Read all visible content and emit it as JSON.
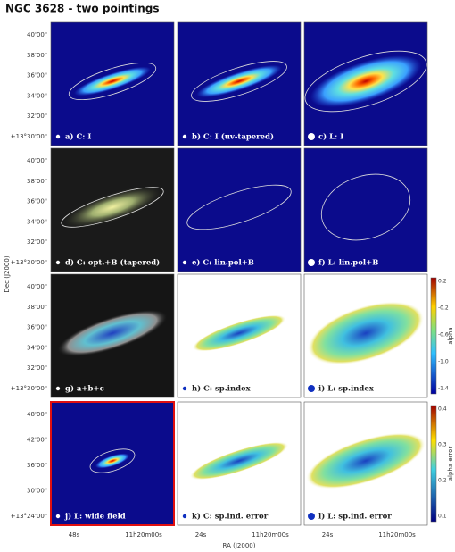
{
  "title": "NGC 3628 - two pointings",
  "panels": [
    {
      "label": "a) C: I"
    },
    {
      "label": "b) C: I (uv-tapered)"
    },
    {
      "label": "c) L: I"
    },
    {
      "label": "d) C: opt.+B (tapered)"
    },
    {
      "label": "e) C: lin.pol+B"
    },
    {
      "label": "f) L: lin.pol+B"
    },
    {
      "label": "g) a+b+c"
    },
    {
      "label": "h) C: sp.index"
    },
    {
      "label": "i) L: sp.index"
    },
    {
      "label": "j) L: wide field"
    },
    {
      "label": "k) C: sp.ind. error"
    },
    {
      "label": "l) L: sp.ind. error"
    }
  ],
  "y_axis": {
    "label": "Dec (J2000)",
    "ticks_rows_1_3": [
      "40'00\"",
      "38'00\"",
      "36'00\"",
      "34'00\"",
      "32'00\"",
      "+13°30'00\""
    ],
    "ticks_row_4": [
      "48'00\"",
      "42'00\"",
      "36'00\"",
      "30'00\"",
      "+13°24'00\""
    ]
  },
  "x_axis": {
    "label": "RA (J2000)",
    "ticks": [
      [
        "48s",
        "11h20m00s"
      ],
      [
        "24s",
        "11h20m00s"
      ],
      [
        "24s",
        "11h20m00s"
      ]
    ]
  },
  "colorbars": [
    {
      "label": "alpha",
      "ticks": [
        "0.2",
        "-0.2",
        "-0.6",
        "-1.0",
        "-1.4"
      ]
    },
    {
      "label": "alpha error",
      "ticks": [
        "0.4",
        "0.3",
        "0.2",
        "0.1"
      ]
    }
  ]
}
